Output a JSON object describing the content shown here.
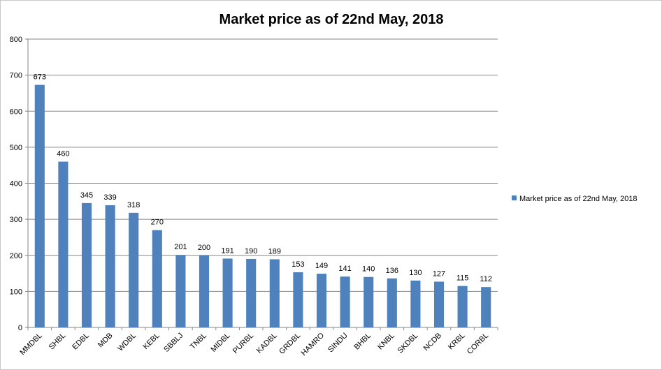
{
  "chart_data": {
    "type": "bar",
    "title": "Market price as of 22nd May, 2018",
    "xlabel": "",
    "ylabel": "",
    "ylim": [
      0,
      800
    ],
    "yticks": [
      0,
      100,
      200,
      300,
      400,
      500,
      600,
      700,
      800
    ],
    "grid": true,
    "legend_position": "right",
    "bar_color": "#4F81BD",
    "categories": [
      "MMDBL",
      "SHBL",
      "EDBL",
      "MDB",
      "WDBL",
      "KEBL",
      "SBBLJ",
      "TNBL",
      "MIDBL",
      "PURBL",
      "KADBL",
      "GRDBL",
      "HAMRO",
      "SINDU",
      "BHBL",
      "KNBL",
      "SKDBL",
      "NCDB",
      "KRBL",
      "CORBL"
    ],
    "series": [
      {
        "name": "Market price as of 22nd May, 2018",
        "values": [
          673,
          460,
          345,
          339,
          318,
          270,
          201,
          200,
          191,
          190,
          189,
          153,
          149,
          141,
          140,
          136,
          130,
          127,
          115,
          112
        ]
      }
    ]
  }
}
